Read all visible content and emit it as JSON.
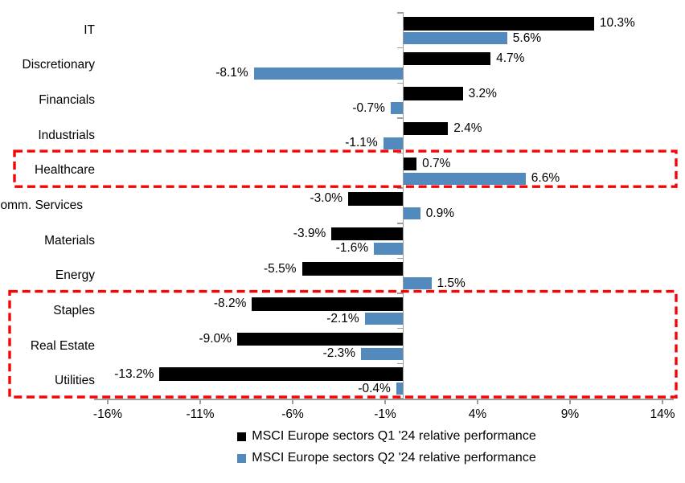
{
  "chart_data": {
    "type": "bar",
    "orientation": "horizontal",
    "title": "",
    "categories": [
      "IT",
      "Discretionary",
      "Financials",
      "Industrials",
      "Healthcare",
      "Comm. Services",
      "Materials",
      "Energy",
      "Staples",
      "Real Estate",
      "Utilities"
    ],
    "series": [
      {
        "name": "MSCI Europe sectors Q1 '24 relative performance",
        "color": "#000000",
        "values": [
          10.3,
          4.7,
          3.2,
          2.4,
          0.7,
          -3.0,
          -3.9,
          -5.5,
          -8.2,
          -9.0,
          -13.2
        ],
        "labels": [
          "10.3%",
          "4.7%",
          "3.2%",
          "2.4%",
          "0.7%",
          "-3.0%",
          "-3.9%",
          "-5.5%",
          "-8.2%",
          "-9.0%",
          "-13.2%"
        ]
      },
      {
        "name": "MSCI Europe sectors Q2 '24 relative performance",
        "color": "#528ABD",
        "values": [
          5.6,
          -8.1,
          -0.7,
          -1.1,
          6.6,
          0.9,
          -1.6,
          1.5,
          -2.1,
          -2.3,
          -0.4
        ],
        "labels": [
          "5.6%",
          "-8.1%",
          "-0.7%",
          "-1.1%",
          "6.6%",
          "0.9%",
          "-1.6%",
          "1.5%",
          "-2.1%",
          "-2.3%",
          "-0.4%"
        ]
      }
    ],
    "x_axis": {
      "unit": "%",
      "min": -16,
      "max": 14,
      "tick_values": [
        -16,
        -11,
        -6,
        -1,
        4,
        9,
        14
      ],
      "tick_labels": [
        "-16%",
        "-11%",
        "-6%",
        "-1%",
        "4%",
        "9%",
        "14%"
      ]
    },
    "grid": false,
    "legend_position": "bottom",
    "axis_color": "#9d9d9d",
    "highlights": [
      {
        "categories": [
          "Healthcare"
        ],
        "style": "red-dashed-box",
        "color": "#F40404"
      },
      {
        "categories": [
          "Staples",
          "Real Estate",
          "Utilities"
        ],
        "style": "red-dashed-box",
        "color": "#F40404"
      }
    ]
  }
}
